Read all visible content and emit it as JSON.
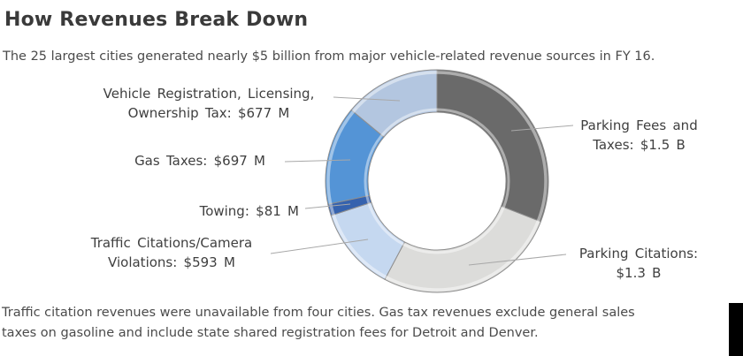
{
  "header": {
    "title": "How Revenues Break Down",
    "subtitle": "The 25 largest cities generated nearly $5 billion from major vehicle-related revenue sources in FY 16."
  },
  "chart_data": {
    "type": "pie",
    "variant": "donut",
    "title": "How Revenues Break Down",
    "units": "millions USD",
    "total_musd": 4848,
    "total_note": "nearly $5 billion",
    "start_angle_deg": 0,
    "direction": "clockwise",
    "legend_position": "callout-labels",
    "slices": [
      {
        "label": "Parking Fees and Taxes",
        "value_musd": 1500,
        "display": "$1.5 B",
        "color": "#6a6a6a",
        "callout_lines": [
          "Parking Fees and",
          "Taxes: $1.5 B"
        ]
      },
      {
        "label": "Parking Citations",
        "value_musd": 1300,
        "display": "$1.3 B",
        "color": "#dcdcda",
        "callout_lines": [
          "Parking Citations:",
          "$1.3 B"
        ]
      },
      {
        "label": "Traffic Citations/Camera Violations",
        "value_musd": 593,
        "display": "$593 M",
        "color": "#c5d8f0",
        "callout_lines": [
          "Traffic Citations/Camera",
          "Violations: $593 M"
        ]
      },
      {
        "label": "Towing",
        "value_musd": 81,
        "display": "$81 M",
        "color": "#3562ae",
        "callout_lines": [
          "Towing: $81 M"
        ]
      },
      {
        "label": "Gas Taxes",
        "value_musd": 697,
        "display": "$697 M",
        "color": "#5494d6",
        "callout_lines": [
          "Gas Taxes: $697 M"
        ]
      },
      {
        "label": "Vehicle Registration, Licensing, Ownership Tax",
        "value_musd": 677,
        "display": "$677 M",
        "color": "#b3c6e0",
        "callout_lines": [
          "Vehicle Registration, Licensing,",
          "Ownership Tax: $677 M"
        ]
      }
    ]
  },
  "footer": {
    "line1": "Traffic citation revenues were unavailable from four cities. Gas tax revenues exclude general sales",
    "line2": "taxes on gasoline and include state shared registration fees for Detroit and Denver."
  }
}
